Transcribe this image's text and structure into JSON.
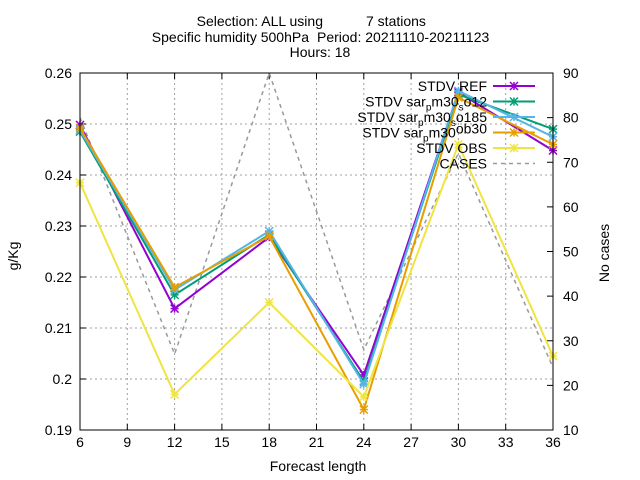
{
  "chart_data": {
    "type": "line",
    "title": {
      "line1_prefix": "Selection: ALL using",
      "line1_suffix": "7 stations",
      "line2_param": "Specific humidity 500hPa",
      "line2_period": "Period: 20211110-20211123",
      "line3": "Hours: 18"
    },
    "xlabel": "Forecast length",
    "ylabel": "g/Kg",
    "y2label": "No cases",
    "x": [
      6,
      12,
      18,
      24,
      30,
      36
    ],
    "xlim": [
      6,
      36
    ],
    "xticks": [
      "6",
      "9",
      "12",
      "15",
      "18",
      "21",
      "24",
      "27",
      "30",
      "33",
      "36"
    ],
    "ylim": [
      0.19,
      0.26
    ],
    "yticks": [
      "0.19",
      "0.2",
      "0.21",
      "0.22",
      "0.23",
      "0.24",
      "0.25",
      "0.26"
    ],
    "y2lim": [
      10,
      90
    ],
    "y2ticks": [
      "10",
      "20",
      "30",
      "40",
      "50",
      "60",
      "70",
      "80",
      "90"
    ],
    "grid": true,
    "legend_position": "top-right",
    "series": [
      {
        "name_parts": [
          "STDV REF"
        ],
        "color": "#9400d3",
        "axis": "y",
        "dashed": false,
        "values": [
          0.2498,
          0.2138,
          0.2278,
          0.2008,
          0.2562,
          0.2448
        ]
      },
      {
        "name_parts": [
          "STDV sar",
          "p",
          "m30",
          "s",
          "o12"
        ],
        "color": "#009e73",
        "axis": "y",
        "dashed": false,
        "values": [
          0.2485,
          0.2165,
          0.2283,
          0.1995,
          0.2558,
          0.249
        ]
      },
      {
        "name_parts": [
          "STDV sar",
          "p",
          "m30",
          "s",
          "o185"
        ],
        "color": "#56b4e9",
        "axis": "y",
        "dashed": false,
        "values": [
          0.2488,
          0.2175,
          0.229,
          0.199,
          0.2565,
          0.2475
        ]
      },
      {
        "name_parts": [
          "STDV sar",
          "p",
          "m30",
          "",
          "ob30"
        ],
        "color": "#e69f00",
        "axis": "y",
        "dashed": false,
        "values": [
          0.2492,
          0.218,
          0.228,
          0.194,
          0.2552,
          0.246
        ]
      },
      {
        "name_parts": [
          "STDV OBS"
        ],
        "color": "#f0e442",
        "axis": "y",
        "dashed": false,
        "values": [
          0.2385,
          0.197,
          0.215,
          0.1965,
          0.246,
          0.2045
        ]
      },
      {
        "name_parts": [
          "CASES"
        ],
        "color": "#999999",
        "axis": "y2",
        "dashed": true,
        "values": [
          80,
          27,
          90,
          28,
          72,
          24
        ]
      }
    ]
  }
}
